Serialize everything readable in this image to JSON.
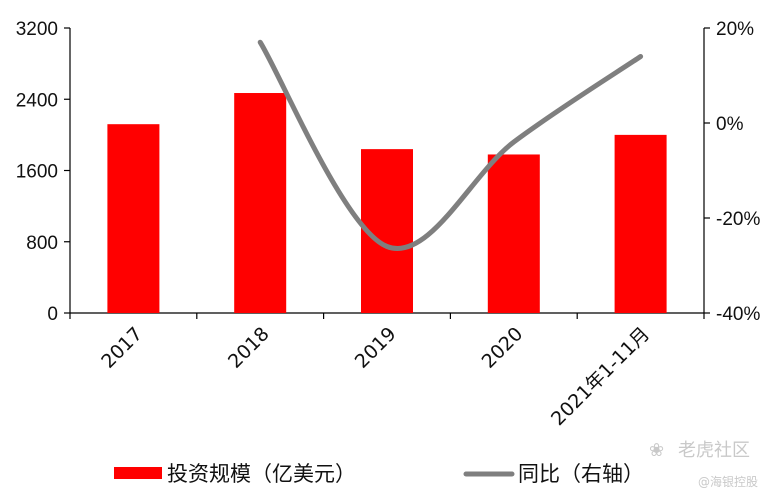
{
  "chart_data": {
    "type": "bar",
    "categories": [
      "2017",
      "2018",
      "2019",
      "2020",
      "2021年1-11月"
    ],
    "series": [
      {
        "name": "投资规模（亿美元）",
        "type": "bar",
        "axis": "left",
        "values": [
          2120,
          2470,
          1840,
          1780,
          2000
        ]
      },
      {
        "name": "同比（右轴）",
        "type": "line",
        "axis": "right",
        "values": [
          null,
          17,
          -26,
          -4,
          14
        ]
      }
    ],
    "left_axis": {
      "ylim": [
        0,
        3200
      ],
      "ticks": [
        "0",
        "800",
        "1600",
        "2400",
        "3200"
      ]
    },
    "right_axis": {
      "ylim": [
        -40,
        20
      ],
      "ticks": [
        "-40%",
        "-20%",
        "0%",
        "20%"
      ]
    },
    "grid": false,
    "legend": "bottom",
    "colors": {
      "bar": "#ff0000",
      "line": "#7f7f7f"
    }
  },
  "watermark": {
    "text": "老虎社区",
    "subtext": "@海银控股"
  }
}
